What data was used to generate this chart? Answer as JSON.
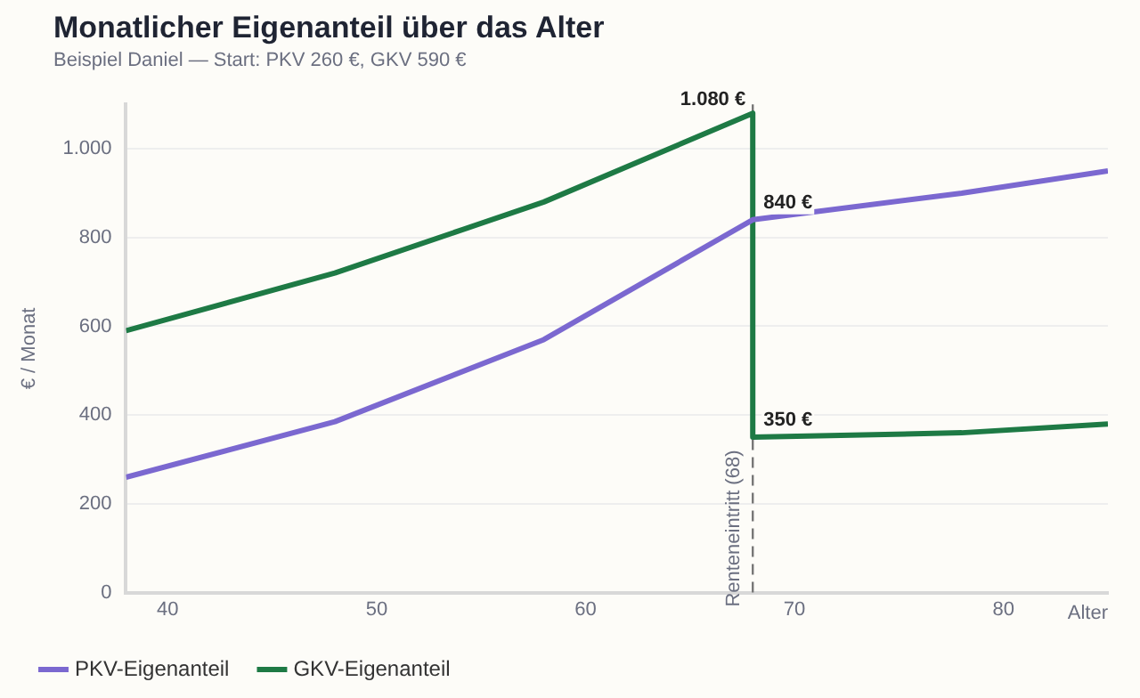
{
  "chart_data": {
    "type": "line",
    "title": "Monatlicher Eigenanteil über das Alter",
    "subtitle": "Beispiel Daniel — Start: PKV 260 €, GKV 590 €",
    "xlabel": "Alter",
    "ylabel": "€ / Monat",
    "series": [
      {
        "name": "PKV-Eigenanteil",
        "color": "#7b68d0",
        "x": [
          38,
          48,
          58,
          68,
          78,
          85
        ],
        "values": [
          260,
          385,
          570,
          840,
          900,
          950
        ],
        "value_labels": [
          null,
          null,
          null,
          "840 €",
          null,
          null
        ]
      },
      {
        "name": "GKV-Eigenanteil",
        "color": "#1e7a45",
        "x": [
          38,
          48,
          58,
          68,
          68,
          78,
          85
        ],
        "values": [
          590,
          720,
          880,
          1080,
          350,
          360,
          380
        ],
        "value_labels": [
          null,
          null,
          null,
          "1.080 €",
          "350 €",
          null,
          null
        ]
      }
    ],
    "xlim": [
      38,
      85
    ],
    "xticks": [
      40,
      50,
      60,
      70,
      80
    ],
    "ylim": [
      0,
      1100
    ],
    "yticks": [
      0,
      200,
      400,
      600,
      800,
      {
        "value": 1000,
        "label": "1.000"
      }
    ],
    "ref_lines": [
      {
        "axis": "x",
        "value": 68,
        "label": "Renteneintritt (68)",
        "color": "#777777",
        "line_style": "dashed"
      }
    ],
    "grid": "y",
    "legend": "bottom",
    "marker": "none",
    "line_style": "solid"
  }
}
